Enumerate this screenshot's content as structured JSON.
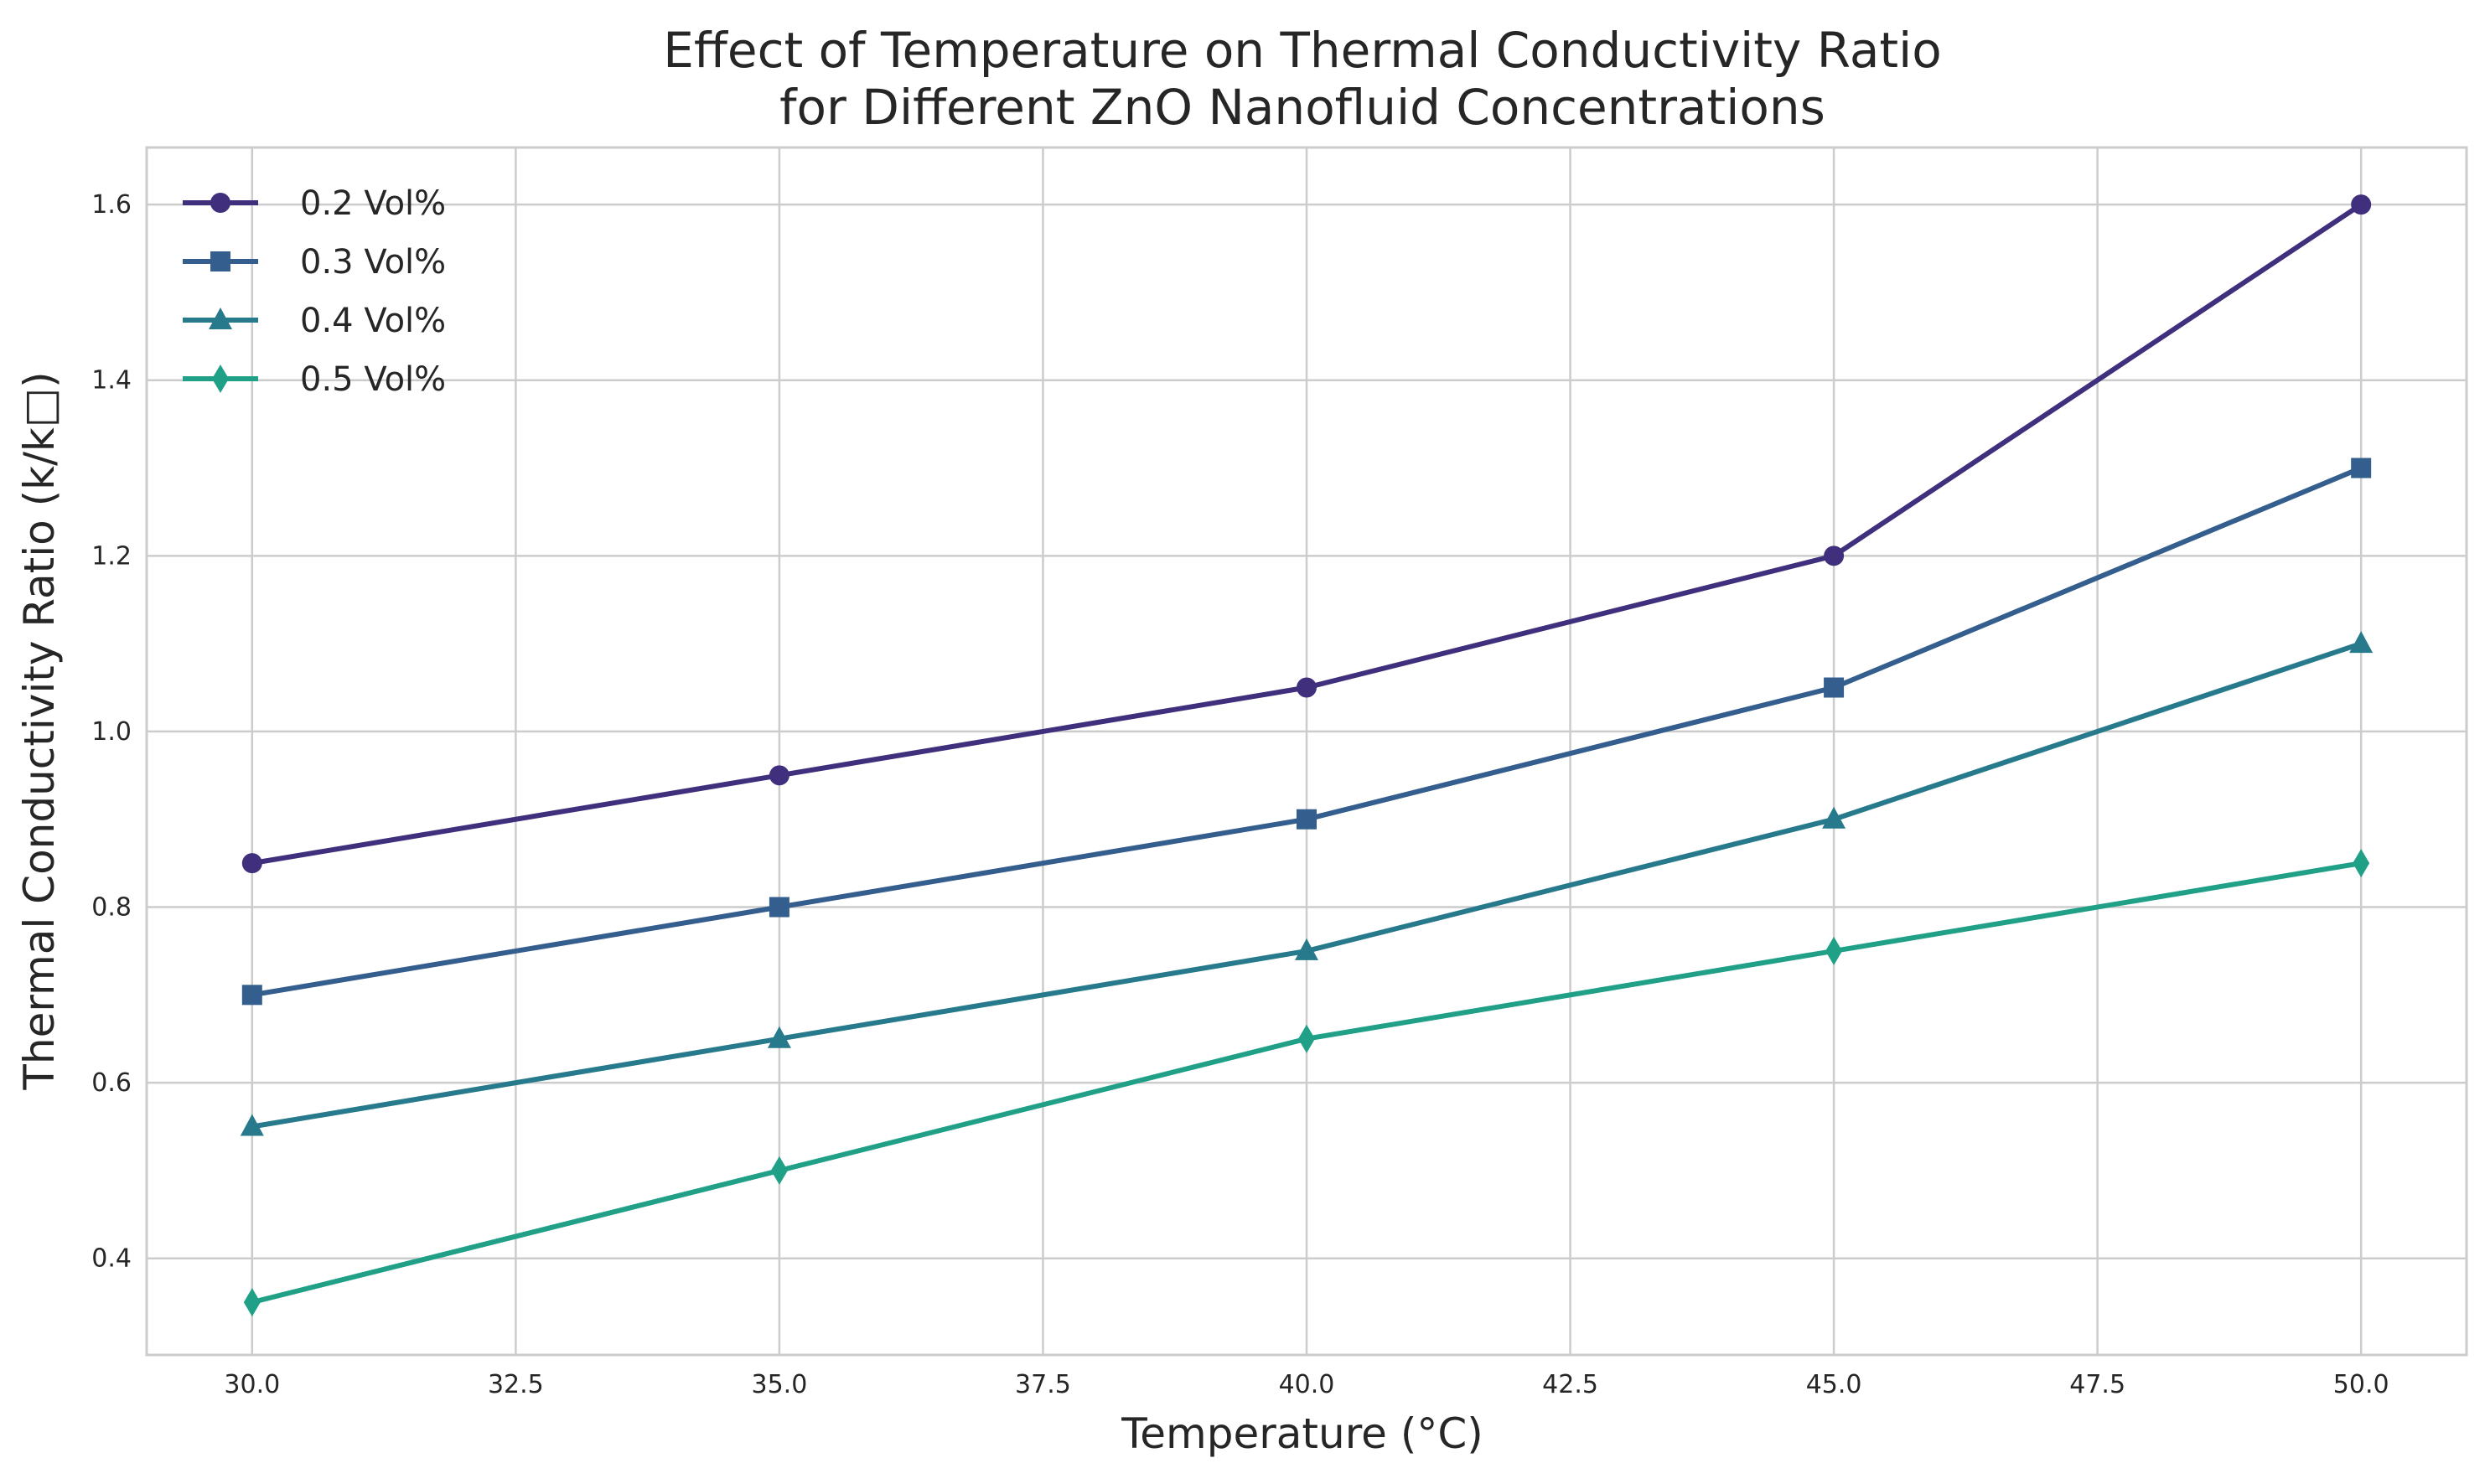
{
  "chart_data": {
    "type": "line",
    "title": [
      "Effect of Temperature on Thermal Conductivity Ratio",
      "for Different ZnO Nanofluid Concentrations"
    ],
    "xlabel": "Temperature (°C)",
    "ylabel": "Thermal Conductivity Ratio (k/k□)",
    "xlim": [
      29.0,
      51.0
    ],
    "ylim": [
      0.29,
      1.665
    ],
    "x_ticks": [
      30.0,
      32.5,
      35.0,
      37.5,
      40.0,
      42.5,
      45.0,
      47.5,
      50.0
    ],
    "x_tick_labels": [
      "30.0",
      "32.5",
      "35.0",
      "37.5",
      "40.0",
      "42.5",
      "45.0",
      "47.5",
      "50.0"
    ],
    "y_ticks": [
      0.4,
      0.6,
      0.8,
      1.0,
      1.2,
      1.4,
      1.6
    ],
    "y_tick_labels": [
      "0.4",
      "0.6",
      "0.8",
      "1.0",
      "1.2",
      "1.4",
      "1.6"
    ],
    "grid": true,
    "legend_position": "top-left",
    "x": [
      30,
      35,
      40,
      45,
      50
    ],
    "series": [
      {
        "name": "0.2 Vol%",
        "values": [
          0.85,
          0.95,
          1.05,
          1.2,
          1.6
        ],
        "color": "#3f2f7c",
        "marker": "circle"
      },
      {
        "name": "0.3 Vol%",
        "values": [
          0.7,
          0.8,
          0.9,
          1.05,
          1.3
        ],
        "color": "#335e8d",
        "marker": "square"
      },
      {
        "name": "0.4 Vol%",
        "values": [
          0.55,
          0.65,
          0.75,
          0.9,
          1.1
        ],
        "color": "#277a8c",
        "marker": "triangle"
      },
      {
        "name": "0.5 Vol%",
        "values": [
          0.35,
          0.5,
          0.65,
          0.75,
          0.85
        ],
        "color": "#21a088",
        "marker": "diamond"
      }
    ]
  }
}
